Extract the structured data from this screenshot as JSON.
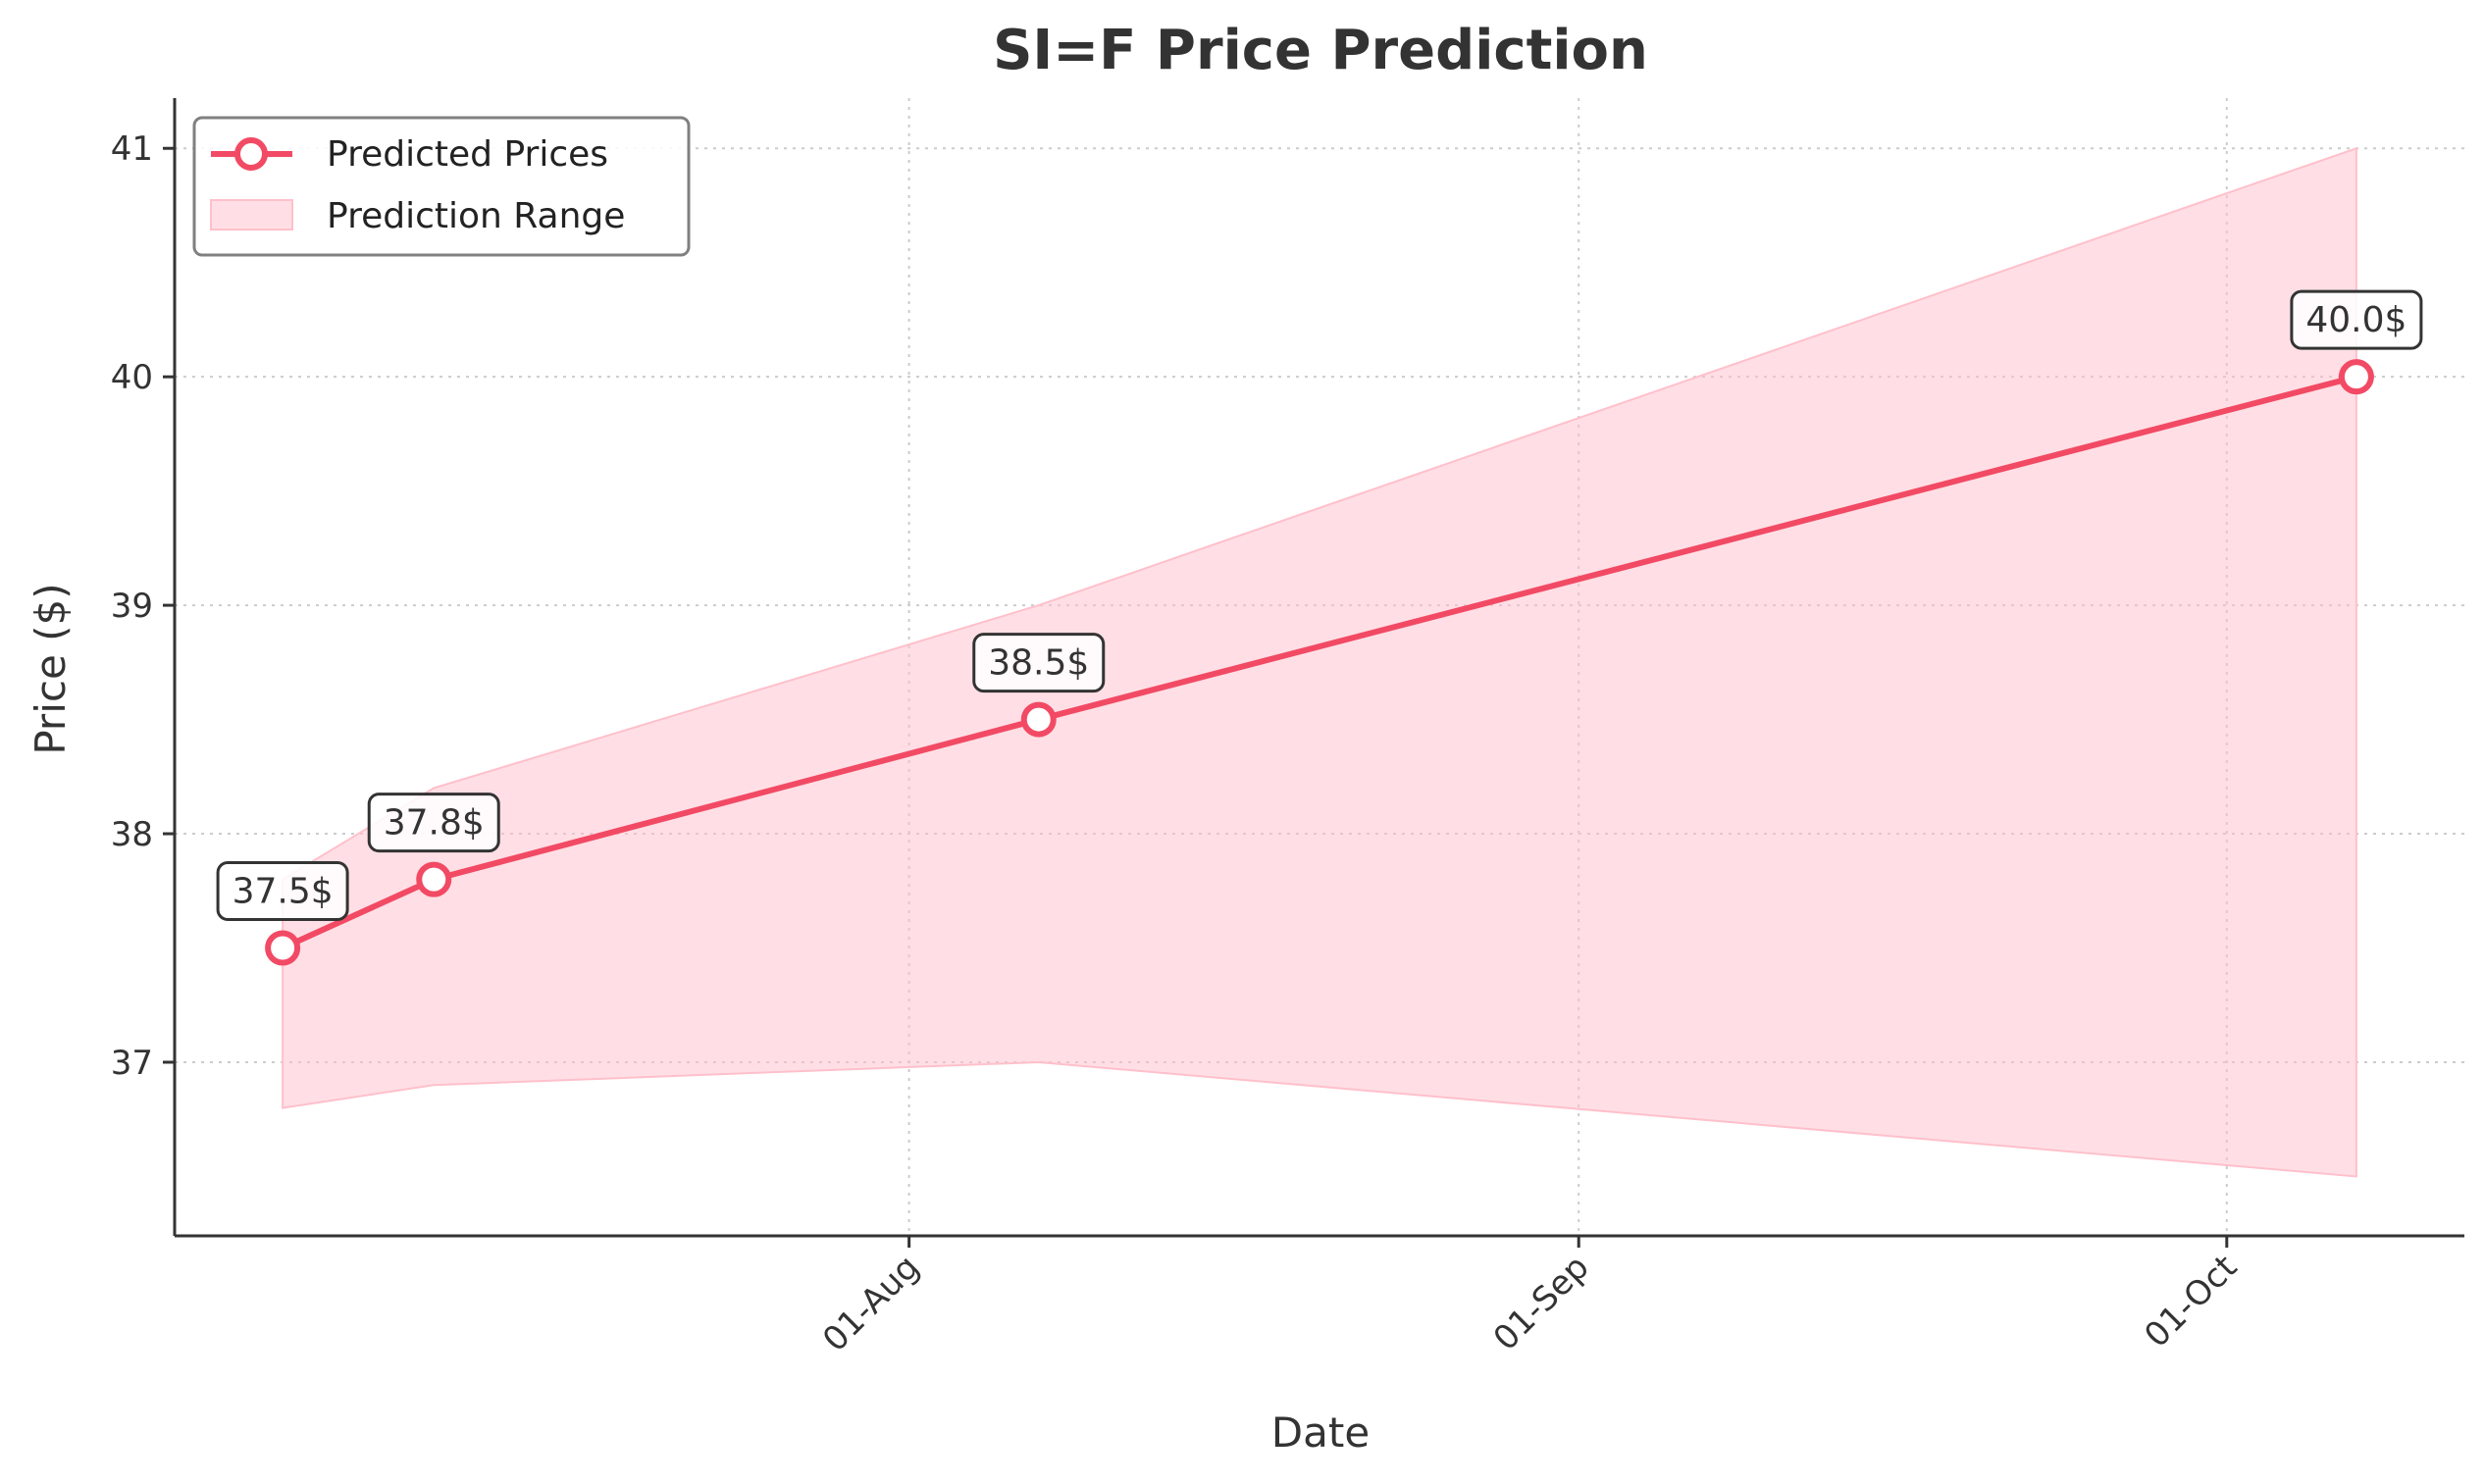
{
  "chart_data": {
    "type": "line",
    "title": "SI=F Price Prediction",
    "xlabel": "Date",
    "ylabel": "Price ($)",
    "x": [
      "2024-07-03",
      "2024-07-10",
      "2024-08-07",
      "2024-10-07"
    ],
    "series": [
      {
        "name": "Predicted Prices",
        "values": [
          37.5,
          37.8,
          38.5,
          40.0
        ],
        "color": "#f24a64",
        "point_labels": [
          "37.5$",
          "37.8$",
          "38.5$",
          "40.0$"
        ]
      }
    ],
    "band": {
      "name": "Prediction Range",
      "lower": [
        36.8,
        36.9,
        37.0,
        36.5
      ],
      "upper": [
        37.8,
        38.2,
        39.0,
        41.0
      ],
      "color": "#ffc0cb"
    },
    "x_ticks": [
      {
        "date": "2024-08-01",
        "label": "01-Aug"
      },
      {
        "date": "2024-09-01",
        "label": "01-Sep"
      },
      {
        "date": "2024-10-01",
        "label": "01-Oct"
      }
    ],
    "y_ticks": [
      37,
      38,
      39,
      40,
      41
    ],
    "xlim": [
      "2024-06-28",
      "2024-10-12"
    ],
    "ylim": [
      36.24,
      41.22
    ],
    "grid": true,
    "legend_position": "top-left"
  }
}
